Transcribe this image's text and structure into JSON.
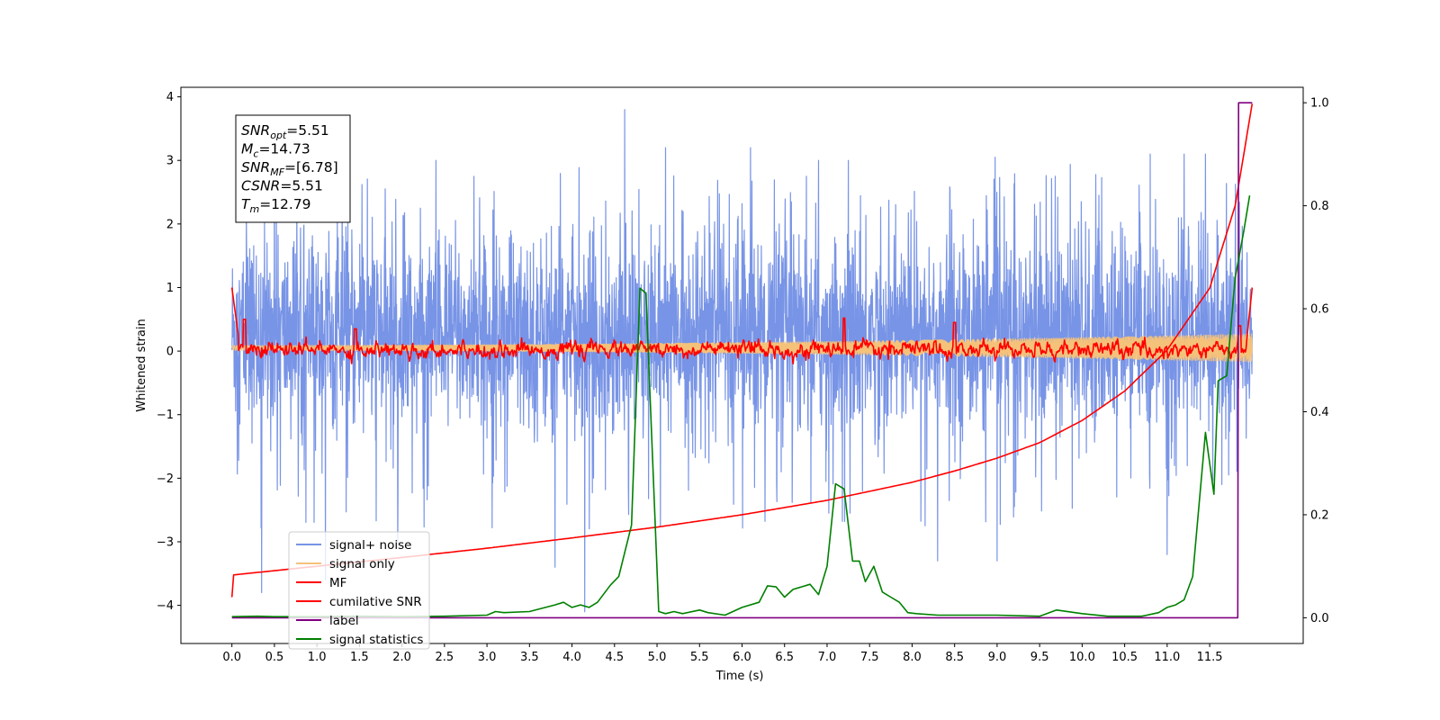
{
  "chart_data": {
    "type": "line",
    "xlabel": "Time (s)",
    "ylabel": "Whitened strain",
    "xlim": [
      -0.6,
      12.6
    ],
    "ylim": [
      -4.6,
      4.15
    ],
    "y2lim": [
      -0.05,
      1.03
    ],
    "x_ticks": [
      0.0,
      0.5,
      1.0,
      1.5,
      2.0,
      2.5,
      3.0,
      3.5,
      4.0,
      4.5,
      5.0,
      5.5,
      6.0,
      6.5,
      7.0,
      7.5,
      8.0,
      8.5,
      9.0,
      9.5,
      10.0,
      10.5,
      11.0,
      11.5
    ],
    "x_tick_labels": [
      "0.0",
      "0.5",
      "1.0",
      "1.5",
      "2.0",
      "2.5",
      "3.0",
      "3.5",
      "4.0",
      "4.5",
      "5.0",
      "5.5",
      "6.0",
      "6.5",
      "7.0",
      "7.5",
      "8.0",
      "8.5",
      "9.0",
      "9.5",
      "10.0",
      "10.5",
      "11.0",
      "11.5"
    ],
    "y_ticks": [
      4,
      3,
      2,
      1,
      0,
      -1,
      -2,
      -3,
      -4
    ],
    "y_tick_labels": [
      "4",
      "3",
      "2",
      "1",
      "0",
      "−1",
      "−2",
      "−3",
      "−4"
    ],
    "y2_ticks": [
      1.0,
      0.8,
      0.6,
      0.4,
      0.2,
      0.0
    ],
    "y2_tick_labels": [
      "1.0",
      "0.8",
      "0.6",
      "0.4",
      "0.2",
      "0.0"
    ],
    "grid": false,
    "legend_position": "lower-left",
    "info_box": [
      {
        "main": "SNR",
        "sub": "opt",
        "rest": "=5.51"
      },
      {
        "main": "M",
        "sub": "c",
        "rest": "=14.73"
      },
      {
        "main": "SNR",
        "sub": "MF",
        "rest": "=[6.78]"
      },
      {
        "main": "CSNR",
        "sub": "",
        "rest": "=5.51"
      },
      {
        "main": "T",
        "sub": "m",
        "rest": "=12.79"
      }
    ],
    "series": [
      {
        "name": "signal+ noise",
        "color": "#7894e6",
        "axis": "left",
        "kind": "noise",
        "x_range": [
          0.0,
          12.0
        ],
        "typical_range": [
          -1.5,
          2.0
        ],
        "peaks": [
          {
            "x": 4.62,
            "y": 3.8
          },
          {
            "x": 4.15,
            "y": -4.1
          },
          {
            "x": 0.35,
            "y": -3.8
          },
          {
            "x": 1.1,
            "y": -3.6
          },
          {
            "x": 3.8,
            "y": -3.4
          },
          {
            "x": 6.1,
            "y": 3.2
          },
          {
            "x": 11.2,
            "y": 3.1
          },
          {
            "x": 10.8,
            "y": 3.1
          },
          {
            "x": 9.0,
            "y": -3.3
          },
          {
            "x": 8.3,
            "y": -3.3
          },
          {
            "x": 11.0,
            "y": -3.2
          },
          {
            "x": 5.1,
            "y": 3.2
          },
          {
            "x": 2.4,
            "y": 3.0
          },
          {
            "x": 7.25,
            "y": 3.0
          },
          {
            "x": 1.95,
            "y": -3.1
          },
          {
            "x": 6.9,
            "y": 3.0
          },
          {
            "x": 0.5,
            "y": 3.0
          },
          {
            "x": 11.45,
            "y": 3.1
          }
        ]
      },
      {
        "name": "signal only",
        "color": "#f5c27a",
        "axis": "left",
        "kind": "chirp",
        "x_range": [
          0.0,
          12.0
        ],
        "amp_start": 0.04,
        "amp_end": 0.22
      },
      {
        "name": "MF",
        "color": "#ff0000",
        "axis": "left",
        "kind": "filtered",
        "x_range": [
          0.0,
          12.0
        ],
        "start_value": 1.0,
        "end_value": 1.0,
        "peaks": [
          {
            "x": 0.15,
            "y": 0.5
          },
          {
            "x": 1.45,
            "y": 0.35
          },
          {
            "x": 7.2,
            "y": 0.52
          },
          {
            "x": 8.5,
            "y": 0.45
          },
          {
            "x": 11.85,
            "y": 0.4
          }
        ]
      },
      {
        "name": "cumilative SNR",
        "color": "#ff0000",
        "axis": "right",
        "kind": "curve",
        "x": [
          0.0,
          0.01,
          1.0,
          2.0,
          3.0,
          4.0,
          5.0,
          6.0,
          7.0,
          8.0,
          8.5,
          9.0,
          9.5,
          10.0,
          10.5,
          11.0,
          11.5,
          11.8,
          12.0
        ],
        "y": [
          0.04,
          0.083,
          0.1,
          0.117,
          0.135,
          0.155,
          0.176,
          0.2,
          0.228,
          0.263,
          0.285,
          0.31,
          0.34,
          0.383,
          0.44,
          0.52,
          0.64,
          0.8,
          0.998
        ]
      },
      {
        "name": "label",
        "color": "#800080",
        "axis": "right",
        "kind": "step",
        "x": [
          0.0,
          11.83,
          11.84,
          12.0
        ],
        "y": [
          0.0,
          0.0,
          1.0,
          1.0
        ]
      },
      {
        "name": "signal statistics",
        "color": "#008000",
        "axis": "right",
        "kind": "curve",
        "x": [
          0.0,
          0.3,
          0.5,
          1.0,
          1.5,
          2.0,
          2.5,
          3.0,
          3.1,
          3.2,
          3.5,
          3.8,
          3.9,
          4.0,
          4.1,
          4.2,
          4.3,
          4.45,
          4.55,
          4.7,
          4.8,
          4.87,
          4.95,
          5.02,
          5.1,
          5.2,
          5.3,
          5.5,
          5.6,
          5.8,
          6.0,
          6.2,
          6.3,
          6.4,
          6.5,
          6.6,
          6.8,
          6.9,
          7.0,
          7.1,
          7.2,
          7.3,
          7.38,
          7.45,
          7.55,
          7.65,
          7.75,
          7.85,
          7.95,
          8.05,
          8.3,
          9.0,
          9.5,
          9.7,
          10.0,
          10.3,
          10.7,
          10.9,
          11.0,
          11.1,
          11.2,
          11.3,
          11.45,
          11.55,
          11.6,
          11.7,
          11.8,
          11.9,
          11.97
        ],
        "y": [
          0.002,
          0.003,
          0.002,
          0.002,
          0.003,
          0.002,
          0.003,
          0.005,
          0.012,
          0.01,
          0.012,
          0.025,
          0.03,
          0.02,
          0.025,
          0.02,
          0.03,
          0.063,
          0.08,
          0.18,
          0.64,
          0.63,
          0.3,
          0.012,
          0.008,
          0.012,
          0.008,
          0.015,
          0.01,
          0.005,
          0.02,
          0.03,
          0.062,
          0.06,
          0.04,
          0.055,
          0.065,
          0.045,
          0.1,
          0.26,
          0.25,
          0.11,
          0.11,
          0.07,
          0.1,
          0.05,
          0.04,
          0.03,
          0.01,
          0.008,
          0.005,
          0.005,
          0.003,
          0.015,
          0.008,
          0.003,
          0.003,
          0.01,
          0.02,
          0.025,
          0.035,
          0.08,
          0.36,
          0.24,
          0.46,
          0.47,
          0.66,
          0.75,
          0.82
        ]
      }
    ]
  }
}
